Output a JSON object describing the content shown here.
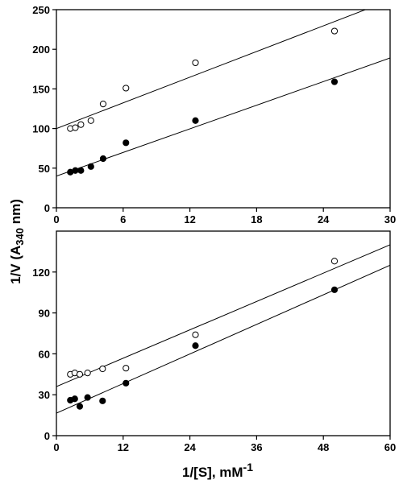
{
  "ylabel_parts": [
    "1/V (A",
    "340",
    " nm)"
  ],
  "xlabel_parts": [
    "1/[S], mM",
    "-1"
  ],
  "chart_data": [
    {
      "type": "scatter",
      "xlim": [
        0,
        30
      ],
      "ylim": [
        0,
        250
      ],
      "x_ticks": [
        0,
        6,
        12,
        18,
        24,
        30
      ],
      "y_ticks": [
        0,
        50,
        100,
        150,
        200,
        250
      ],
      "series": [
        {
          "marker": "open-circle",
          "points": [
            [
              1.25,
              100
            ],
            [
              1.7,
              101
            ],
            [
              2.2,
              105
            ],
            [
              3.1,
              110
            ],
            [
              4.2,
              131
            ],
            [
              6.25,
              151
            ],
            [
              12.5,
              183
            ],
            [
              25,
              223
            ]
          ],
          "fit_line": [
            [
              0,
              100
            ],
            [
              30,
              262
            ]
          ]
        },
        {
          "marker": "filled-circle",
          "points": [
            [
              1.25,
              45
            ],
            [
              1.7,
              47
            ],
            [
              2.2,
              47
            ],
            [
              3.1,
              52
            ],
            [
              4.2,
              62
            ],
            [
              6.25,
              82
            ],
            [
              12.5,
              110
            ],
            [
              25,
              159
            ]
          ],
          "fit_line": [
            [
              0,
              40
            ],
            [
              30,
              189
            ]
          ]
        }
      ]
    },
    {
      "type": "scatter",
      "xlim": [
        0,
        60
      ],
      "ylim": [
        0,
        150
      ],
      "x_ticks": [
        0,
        12,
        24,
        36,
        48,
        60
      ],
      "y_ticks": [
        0,
        30,
        60,
        90,
        120
      ],
      "series": [
        {
          "marker": "open-circle",
          "points": [
            [
              2.5,
              45
            ],
            [
              3.3,
              46
            ],
            [
              4.2,
              45
            ],
            [
              5.6,
              46
            ],
            [
              8.3,
              49
            ],
            [
              12.5,
              49.5
            ],
            [
              25,
              74
            ],
            [
              50,
              128
            ]
          ],
          "fit_line": [
            [
              0,
              36
            ],
            [
              60,
              140
            ]
          ]
        },
        {
          "marker": "filled-circle",
          "points": [
            [
              2.5,
              26
            ],
            [
              3.3,
              27
            ],
            [
              4.2,
              21.5
            ],
            [
              5.6,
              28
            ],
            [
              8.3,
              25.5
            ],
            [
              12.5,
              38.5
            ],
            [
              25,
              66
            ],
            [
              50,
              107
            ]
          ],
          "fit_line": [
            [
              0,
              16.5
            ],
            [
              60,
              125
            ]
          ]
        }
      ]
    }
  ]
}
